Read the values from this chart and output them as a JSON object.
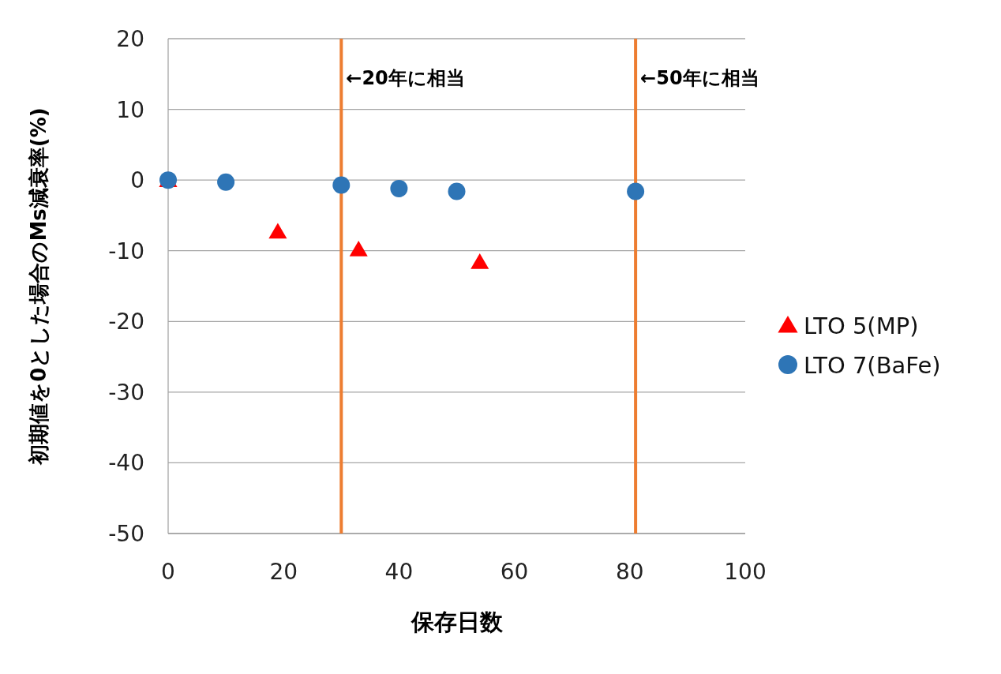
{
  "chart_data": {
    "type": "scatter",
    "xlabel": "保存日数",
    "ylabel": "初期値を0とした場合のMs減衰率(%)",
    "xlim": [
      0,
      100
    ],
    "xticks": [
      0,
      20,
      40,
      60,
      80,
      100
    ],
    "ylim": [
      -50,
      20
    ],
    "yticks": [
      -50,
      -40,
      -30,
      -20,
      -10,
      0,
      10,
      20
    ],
    "grid": "y",
    "legend": "right",
    "series": [
      {
        "name": "LTO 5(MP)",
        "color": "#ff0000",
        "marker": "triangle",
        "x": [
          0,
          19,
          33,
          54
        ],
        "values": [
          0,
          -7.3,
          -9.8,
          -11.6
        ]
      },
      {
        "name": "LTO 7(BaFe)",
        "color": "#2e75b6",
        "marker": "circle",
        "x": [
          0,
          10,
          30,
          40,
          50,
          81
        ],
        "values": [
          0,
          -0.3,
          -0.7,
          -1.2,
          -1.6,
          -1.6
        ]
      }
    ],
    "ref_lines": [
      {
        "axis": "x",
        "value": 30,
        "label": "←20年に相当",
        "color": "#ed7d31"
      },
      {
        "axis": "x",
        "value": 81,
        "label": "←50年に相当",
        "color": "#ed7d31"
      }
    ]
  }
}
